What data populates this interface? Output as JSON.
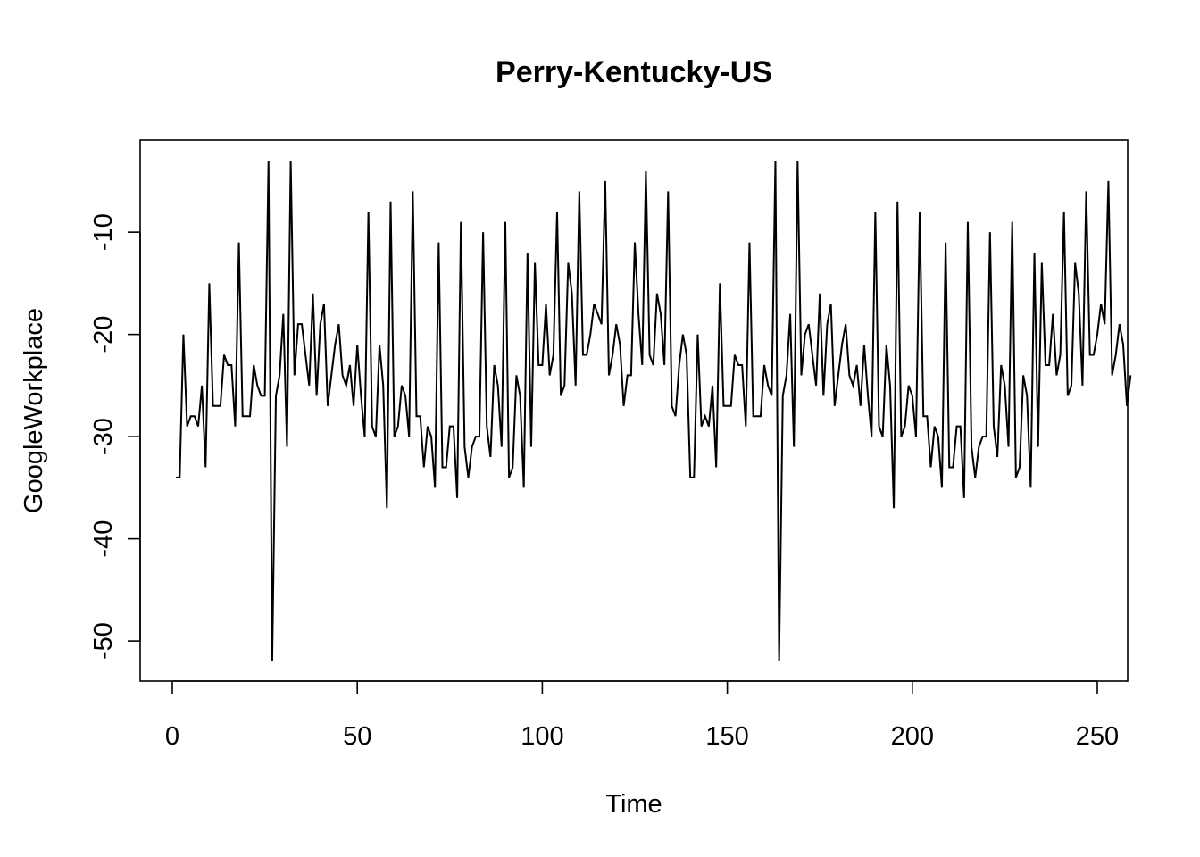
{
  "chart_data": {
    "type": "line",
    "title": "Perry-Kentucky-US",
    "xlabel": "Time",
    "ylabel": "GoogleWorkplace",
    "xlim": [
      0,
      250
    ],
    "ylim": [
      -52,
      -3
    ],
    "x_ticks": [
      0,
      50,
      100,
      150,
      200,
      250
    ],
    "y_ticks": [
      -50,
      -40,
      -30,
      -20,
      -10
    ],
    "grid": false,
    "legend": "none",
    "series": [
      {
        "x_start": 1,
        "line_color": "#000000",
        "values": [
          -34,
          -34,
          -20,
          -29,
          -28,
          -28,
          -29,
          -25,
          -33,
          -15,
          -27,
          -27,
          -27,
          -22,
          -23,
          -23,
          -29,
          -11,
          -28,
          -28,
          -28,
          -23,
          -25,
          -26,
          -26,
          -3,
          -52,
          -26,
          -24,
          -18,
          -31,
          -3,
          -24,
          -19,
          -19,
          -22,
          -25,
          -16,
          -26,
          -19,
          -17,
          -27,
          -24,
          -21,
          -19,
          -24,
          -25,
          -23,
          -27,
          -21,
          -26,
          -30,
          -8,
          -29,
          -30,
          -21,
          -25,
          -37,
          -7,
          -30,
          -29,
          -25,
          -26,
          -30,
          -6,
          -28,
          -28,
          -33,
          -29,
          -30,
          -35,
          -11,
          -33,
          -33,
          -29,
          -29,
          -36,
          -9,
          -31,
          -34,
          -31,
          -30,
          -30,
          -10,
          -29,
          -32,
          -23,
          -25,
          -31,
          -9,
          -34,
          -33,
          -24,
          -26,
          -35,
          -12,
          -31,
          -13,
          -23,
          -23,
          -17,
          -24,
          -22,
          -8,
          -26,
          -25,
          -13,
          -16,
          -25,
          -6,
          -22,
          -22,
          -20,
          -17,
          -18,
          -19,
          -5,
          -24,
          -22,
          -19,
          -21,
          -27,
          -24,
          -24,
          -11,
          -18,
          -23,
          -4,
          -22,
          -23,
          -16,
          -18,
          -23,
          -6,
          -27,
          -28,
          -23,
          -20,
          -22,
          -34,
          -34,
          -20,
          -29,
          -28,
          -29,
          -25,
          -33,
          -15,
          -27,
          -27,
          -27,
          -22,
          -23,
          -23,
          -29,
          -11,
          -28,
          -28,
          -28,
          -23,
          -25,
          -26,
          -3,
          -52,
          -26,
          -24,
          -18,
          -31,
          -3,
          -24,
          -20,
          -19,
          -22,
          -25,
          -16,
          -26,
          -19,
          -17,
          -27,
          -24,
          -21,
          -19,
          -24,
          -25,
          -23,
          -27,
          -21,
          -26,
          -30,
          -8,
          -29,
          -30,
          -21,
          -25,
          -37,
          -7,
          -30,
          -29,
          -25,
          -26,
          -30,
          -8,
          -28,
          -28,
          -33,
          -29,
          -30,
          -35,
          -11,
          -33,
          -33,
          -29,
          -29,
          -36,
          -9,
          -31,
          -34,
          -31,
          -30,
          -30,
          -10,
          -29,
          -32,
          -23,
          -25,
          -31,
          -9,
          -34,
          -33,
          -24,
          -26,
          -35,
          -12,
          -31,
          -13,
          -23,
          -23,
          -18,
          -24,
          -22,
          -8,
          -26,
          -25,
          -13,
          -16,
          -25,
          -6,
          -22,
          -22,
          -20,
          -17,
          -19,
          -5,
          -24,
          -22,
          -19,
          -21,
          -27,
          -24
        ]
      }
    ]
  }
}
